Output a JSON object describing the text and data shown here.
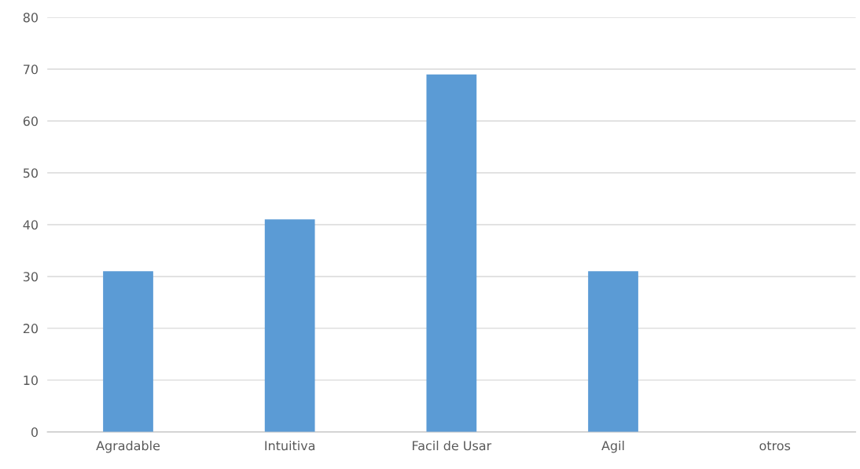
{
  "chart_data": {
    "type": "bar",
    "categories": [
      "Agradable",
      "Intuitiva",
      "Facil de Usar",
      "Agil",
      "otros"
    ],
    "values": [
      31,
      41,
      69,
      31,
      0
    ],
    "color": "#5b9bd5",
    "ylim": [
      0,
      80
    ],
    "yticks": [
      0,
      10,
      20,
      30,
      40,
      50,
      60,
      70,
      80
    ],
    "grid": "y",
    "legend": false
  }
}
